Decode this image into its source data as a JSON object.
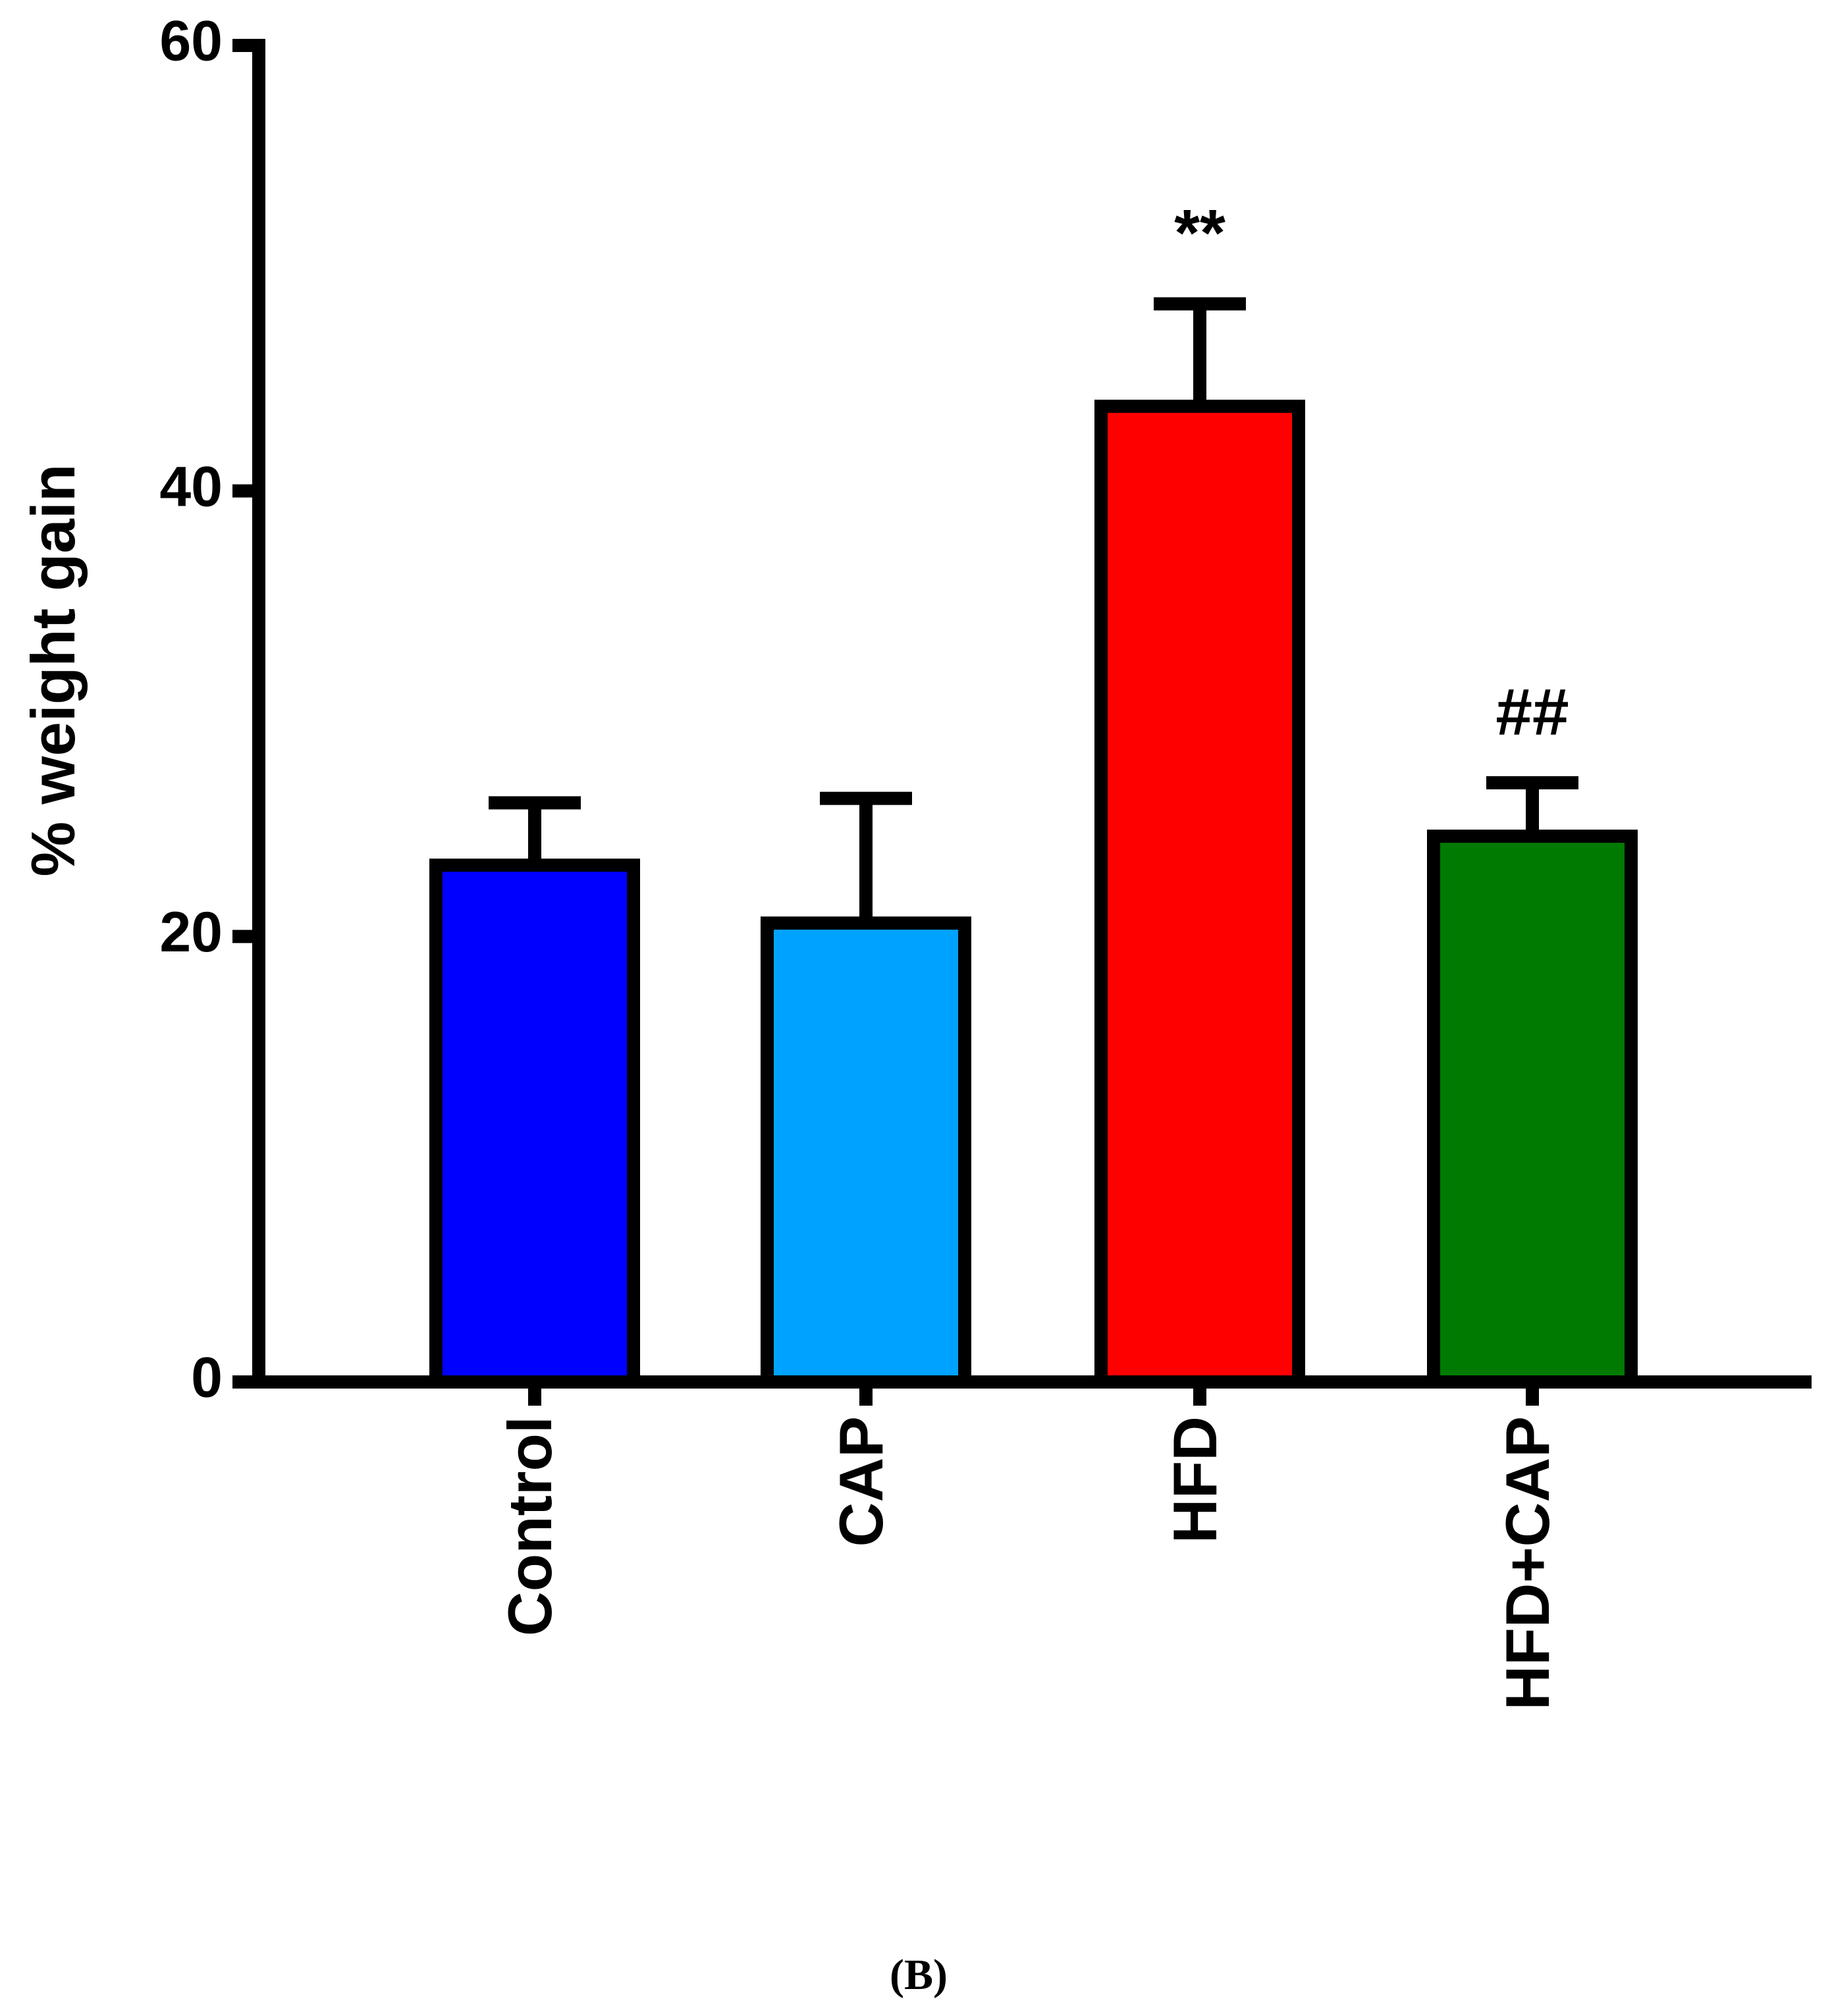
{
  "chart_data": {
    "type": "bar",
    "ylabel": "% weight gain",
    "categories": [
      "Control",
      "CAP",
      "HFD",
      "HFD+CAP"
    ],
    "values": [
      23.2,
      20.6,
      43.8,
      24.5
    ],
    "errors": [
      2.8,
      5.6,
      4.6,
      2.4
    ],
    "colors": [
      "#0000ff",
      "#00a2ff",
      "#ff0000",
      "#007a00"
    ],
    "annotations": [
      null,
      null,
      "**",
      "##"
    ],
    "ylim": [
      0,
      60
    ],
    "yticks": [
      0,
      20,
      40,
      60
    ],
    "caption": "(B)"
  }
}
